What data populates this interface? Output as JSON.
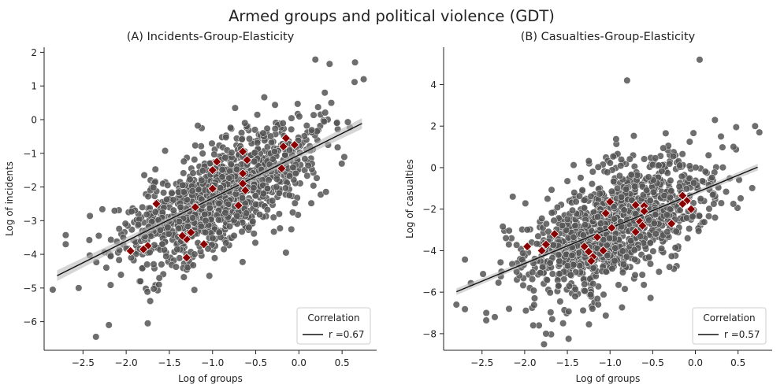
{
  "figure_title": "Armed groups and political violence (GDT)",
  "colors": {
    "points": "#555555",
    "point_edge": "#ffffff",
    "highlight": "#8b0000",
    "fit_line": "#111111",
    "band": "#bbbbbb"
  },
  "chart_data": [
    {
      "type": "scatter",
      "title": "(A) Incidents-Group-Elasticity",
      "xlabel": "Log of groups",
      "ylabel": "Log of incidents",
      "xlim": [
        -2.95,
        0.9
      ],
      "ylim": [
        -6.85,
        2.15
      ],
      "xticks": [
        -2.5,
        -2.0,
        -1.5,
        -1.0,
        -0.5,
        0.0,
        0.5
      ],
      "xtick_labels": [
        "−2.5",
        "−2.0",
        "−1.5",
        "−1.0",
        "−0.5",
        "0.0",
        "0.5"
      ],
      "yticks": [
        -6,
        -5,
        -4,
        -3,
        -2,
        -1,
        0,
        1,
        2
      ],
      "ytick_labels": [
        "−6",
        "−5",
        "−4",
        "−3",
        "−2",
        "−1",
        "0",
        "1",
        "2"
      ],
      "fit": {
        "slope": 1.28,
        "intercept": -1.05,
        "x_range": [
          -2.8,
          0.73
        ]
      },
      "cloud": {
        "count": 1200,
        "x_mean": -0.95,
        "x_sd": 0.55,
        "x_min": -2.7,
        "x_max": 0.7,
        "residual_sd": 0.75,
        "seed": 11
      },
      "outliers": [
        [
          0.65,
          1.7
        ],
        [
          0.75,
          1.2
        ],
        [
          -2.35,
          -6.45
        ],
        [
          -2.2,
          -6.1
        ],
        [
          -1.75,
          -6.05
        ],
        [
          -2.85,
          -5.05
        ],
        [
          -2.55,
          -5.0
        ],
        [
          -0.15,
          -3.95
        ],
        [
          0.3,
          0.8
        ],
        [
          -2.7,
          -3.7
        ]
      ],
      "highlighted": [
        [
          -0.15,
          -0.55
        ],
        [
          -0.05,
          -0.75
        ],
        [
          -0.18,
          -0.8
        ],
        [
          -0.2,
          -1.45
        ],
        [
          -0.65,
          -0.95
        ],
        [
          -0.6,
          -1.2
        ],
        [
          -0.65,
          -1.6
        ],
        [
          -0.65,
          -1.9
        ],
        [
          -0.62,
          -2.1
        ],
        [
          -0.7,
          -2.55
        ],
        [
          -0.95,
          -1.25
        ],
        [
          -1.0,
          -1.5
        ],
        [
          -1.0,
          -2.05
        ],
        [
          -1.2,
          -2.6
        ],
        [
          -1.1,
          -3.7
        ],
        [
          -1.25,
          -3.35
        ],
        [
          -1.3,
          -3.55
        ],
        [
          -1.35,
          -3.45
        ],
        [
          -1.3,
          -4.1
        ],
        [
          -1.65,
          -2.5
        ],
        [
          -1.75,
          -3.75
        ],
        [
          -1.8,
          -3.85
        ],
        [
          -1.95,
          -3.9
        ]
      ],
      "legend": {
        "title": "Correlation",
        "entries": [
          "r =0.67"
        ],
        "placement": "lower-right"
      },
      "grid": false
    },
    {
      "type": "scatter",
      "title": "(B) Casualties-Group-Elasticity",
      "xlabel": "Log of groups",
      "ylabel": "Log of casualties",
      "xlim": [
        -2.95,
        0.9
      ],
      "ylim": [
        -8.8,
        5.8
      ],
      "xticks": [
        -2.5,
        -2.0,
        -1.5,
        -1.0,
        -0.5,
        0.0,
        0.5
      ],
      "xtick_labels": [
        "−2.5",
        "−2.0",
        "−1.5",
        "−1.0",
        "−0.5",
        "0.0",
        "0.5"
      ],
      "yticks": [
        -8,
        -6,
        -4,
        -2,
        0,
        2,
        4
      ],
      "ytick_labels": [
        "−8",
        "−6",
        "−4",
        "−2",
        "0",
        "2",
        "4"
      ],
      "fit": {
        "slope": 1.7,
        "intercept": -1.22,
        "x_range": [
          -2.8,
          0.73
        ]
      },
      "cloud": {
        "count": 1200,
        "x_mean": -0.95,
        "x_sd": 0.55,
        "x_min": -2.7,
        "x_max": 0.7,
        "residual_sd": 1.35,
        "seed": 29
      },
      "outliers": [
        [
          0.05,
          5.2
        ],
        [
          -0.8,
          4.2
        ],
        [
          0.7,
          2.0
        ],
        [
          0.75,
          1.7
        ],
        [
          -1.9,
          -7.6
        ],
        [
          -1.75,
          -8.0
        ],
        [
          -1.55,
          -7.5
        ],
        [
          -2.8,
          -6.6
        ],
        [
          -2.45,
          -7.0
        ],
        [
          -2.35,
          -7.2
        ],
        [
          0.3,
          1.5
        ]
      ],
      "highlighted": [
        [
          -0.15,
          -1.35
        ],
        [
          -0.1,
          -1.6
        ],
        [
          -0.15,
          -1.75
        ],
        [
          -0.05,
          -2.0
        ],
        [
          -0.28,
          -2.7
        ],
        [
          -0.6,
          -1.85
        ],
        [
          -0.7,
          -1.8
        ],
        [
          -0.6,
          -2.1
        ],
        [
          -0.65,
          -2.6
        ],
        [
          -0.62,
          -2.8
        ],
        [
          -0.7,
          -3.1
        ],
        [
          -1.0,
          -1.65
        ],
        [
          -1.05,
          -2.2
        ],
        [
          -0.98,
          -2.9
        ],
        [
          -1.15,
          -3.35
        ],
        [
          -1.3,
          -3.8
        ],
        [
          -1.25,
          -4.05
        ],
        [
          -1.2,
          -4.3
        ],
        [
          -1.22,
          -4.5
        ],
        [
          -1.08,
          -4.0
        ],
        [
          -1.65,
          -3.2
        ],
        [
          -1.75,
          -3.7
        ],
        [
          -1.8,
          -4.0
        ],
        [
          -1.97,
          -3.8
        ]
      ],
      "legend": {
        "title": "Correlation",
        "entries": [
          "r =0.57"
        ],
        "placement": "lower-right"
      },
      "grid": false
    }
  ]
}
